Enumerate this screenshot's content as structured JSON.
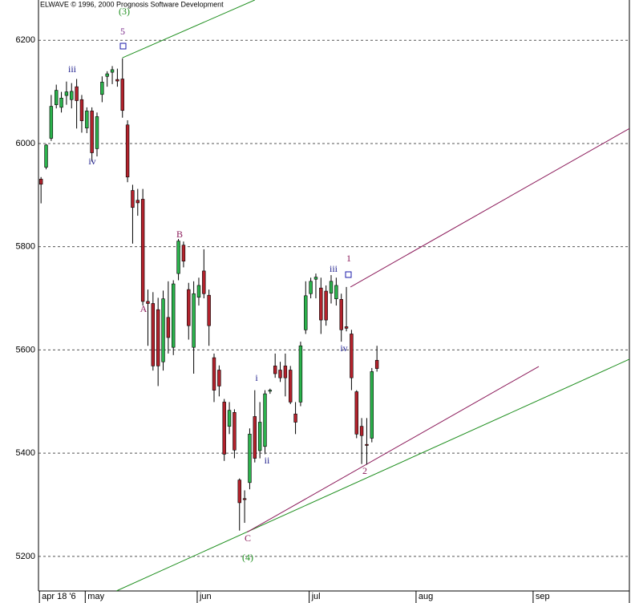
{
  "chart_data": {
    "type": "candlestick",
    "credit": "ELWAVE © 1996, 2000 Prognosis Software Development",
    "open": [
      5931,
      5954,
      6010,
      6075,
      6070,
      6093,
      6085,
      6110,
      6085,
      6030,
      6063,
      5990,
      6095,
      6130,
      6138,
      6124,
      6125,
      6036,
      5909,
      5890,
      5892,
      5694,
      5690,
      5678,
      5577,
      5663,
      5605,
      5748,
      5803,
      5717,
      5605,
      5702,
      5753,
      5706,
      5585,
      5561,
      5499,
      5452,
      5479,
      5348,
      5312,
      5343,
      5471,
      5405,
      5413,
      5520,
      5569,
      5561,
      5569,
      5561,
      5476,
      5499,
      5639,
      5709,
      5737,
      5720,
      5714,
      5710,
      5699,
      5698,
      5645,
      5631,
      5519,
      5452,
      5417,
      5429,
      5580
    ],
    "high": [
      5935,
      5999,
      6094,
      6114,
      6100,
      6120,
      6117,
      6125,
      6094,
      6070,
      6070,
      6060,
      6130,
      6140,
      6150,
      6145,
      6165,
      6045,
      5920,
      5912,
      5912,
      5717,
      5712,
      5701,
      5715,
      5733,
      5735,
      5815,
      5810,
      5730,
      5733,
      5740,
      5795,
      5717,
      5593,
      5570,
      5505,
      5499,
      5485,
      5351,
      5328,
      5448,
      5522,
      5499,
      5522,
      5525,
      5593,
      5577,
      5593,
      5569,
      5499,
      5616,
      5733,
      5740,
      5748,
      5740,
      5725,
      5745,
      5740,
      5709,
      5722,
      5639,
      5522,
      5468,
      5468,
      5565,
      5608
    ],
    "low": [
      5884,
      5950,
      6005,
      6068,
      6060,
      6075,
      6068,
      6029,
      6021,
      6020,
      5965,
      5975,
      6080,
      6110,
      6115,
      6110,
      6050,
      5925,
      5806,
      5860,
      5686,
      5608,
      5560,
      5530,
      5560,
      5593,
      5590,
      5735,
      5760,
      5620,
      5554,
      5686,
      5700,
      5608,
      5499,
      5510,
      5385,
      5437,
      5390,
      5250,
      5265,
      5330,
      5382,
      5390,
      5398,
      5515,
      5546,
      5538,
      5510,
      5495,
      5437,
      5491,
      5631,
      5700,
      5700,
      5631,
      5647,
      5690,
      5686,
      5616,
      5636,
      5522,
      5429,
      5379,
      5378,
      5421,
      5558
    ],
    "close": [
      5921,
      5997,
      6072,
      6103,
      6088,
      6100,
      6101,
      6083,
      6044,
      6063,
      5982,
      6052,
      6119,
      6135,
      6143,
      6121,
      6064,
      5935,
      5876,
      5885,
      5694,
      5690,
      5569,
      5569,
      5699,
      5624,
      5728,
      5811,
      5772,
      5647,
      5709,
      5725,
      5709,
      5647,
      5522,
      5530,
      5398,
      5483,
      5406,
      5304,
      5310,
      5437,
      5390,
      5460,
      5515,
      5522,
      5554,
      5546,
      5546,
      5499,
      5460,
      5608,
      5705,
      5733,
      5741,
      5658,
      5658,
      5733,
      5725,
      5639,
      5642,
      5546,
      5437,
      5434,
      5415,
      5558,
      5564
    ],
    "up_color": "#2bb24c",
    "down_color": "#b3222c",
    "xlim": [
      -0.5,
      115.6
    ],
    "ylim": [
      5133,
      6278
    ],
    "yticks": [
      5200,
      5400,
      5600,
      5800,
      6000,
      6200
    ],
    "xticks": [
      {
        "value": 0,
        "label": "apr 18 '6"
      },
      {
        "value": 9,
        "label": "may"
      },
      {
        "value": 31,
        "label": "jun"
      },
      {
        "value": 53,
        "label": "jul"
      },
      {
        "value": 74,
        "label": "aug"
      },
      {
        "value": 97,
        "label": "sep"
      }
    ],
    "grid": true,
    "trendlines": [
      {
        "color": "#1f8f1f",
        "x": [
          16,
          42
        ],
        "y": [
          6166,
          6278
        ]
      },
      {
        "color": "#1f8f1f",
        "x": [
          14.8,
          115.6
        ],
        "y": [
          5133,
          5582
        ]
      },
      {
        "color": "#8b1a5a",
        "x": [
          40.5,
          97.8
        ],
        "y": [
          5247,
          5568
        ]
      },
      {
        "color": "#8b1a5a",
        "x": [
          60.8,
          115.6
        ],
        "y": [
          5722,
          6029
        ]
      }
    ],
    "annotations": [
      {
        "text": "(3)",
        "color": "#1f8f1f"
      },
      {
        "text": "5",
        "color": "#7a2a8a"
      },
      {
        "text": "iii",
        "color": "#1a1a8a"
      },
      {
        "text": "iv",
        "color": "#1a1a8a"
      },
      {
        "text": "B",
        "color": "#8b1a5a"
      },
      {
        "text": "A",
        "color": "#8b1a5a"
      },
      {
        "text": "i",
        "color": "#1a1a8a"
      },
      {
        "text": "ii",
        "color": "#1a1a8a"
      },
      {
        "text": "C",
        "color": "#8b1a5a"
      },
      {
        "text": "(4)",
        "color": "#1f8f1f"
      },
      {
        "text": "iii",
        "color": "#1a1a8a"
      },
      {
        "text": "1",
        "color": "#8b1a5a"
      },
      {
        "text": "iv",
        "color": "#1a1a8a"
      },
      {
        "text": "2",
        "color": "#8b1a5a"
      }
    ]
  }
}
